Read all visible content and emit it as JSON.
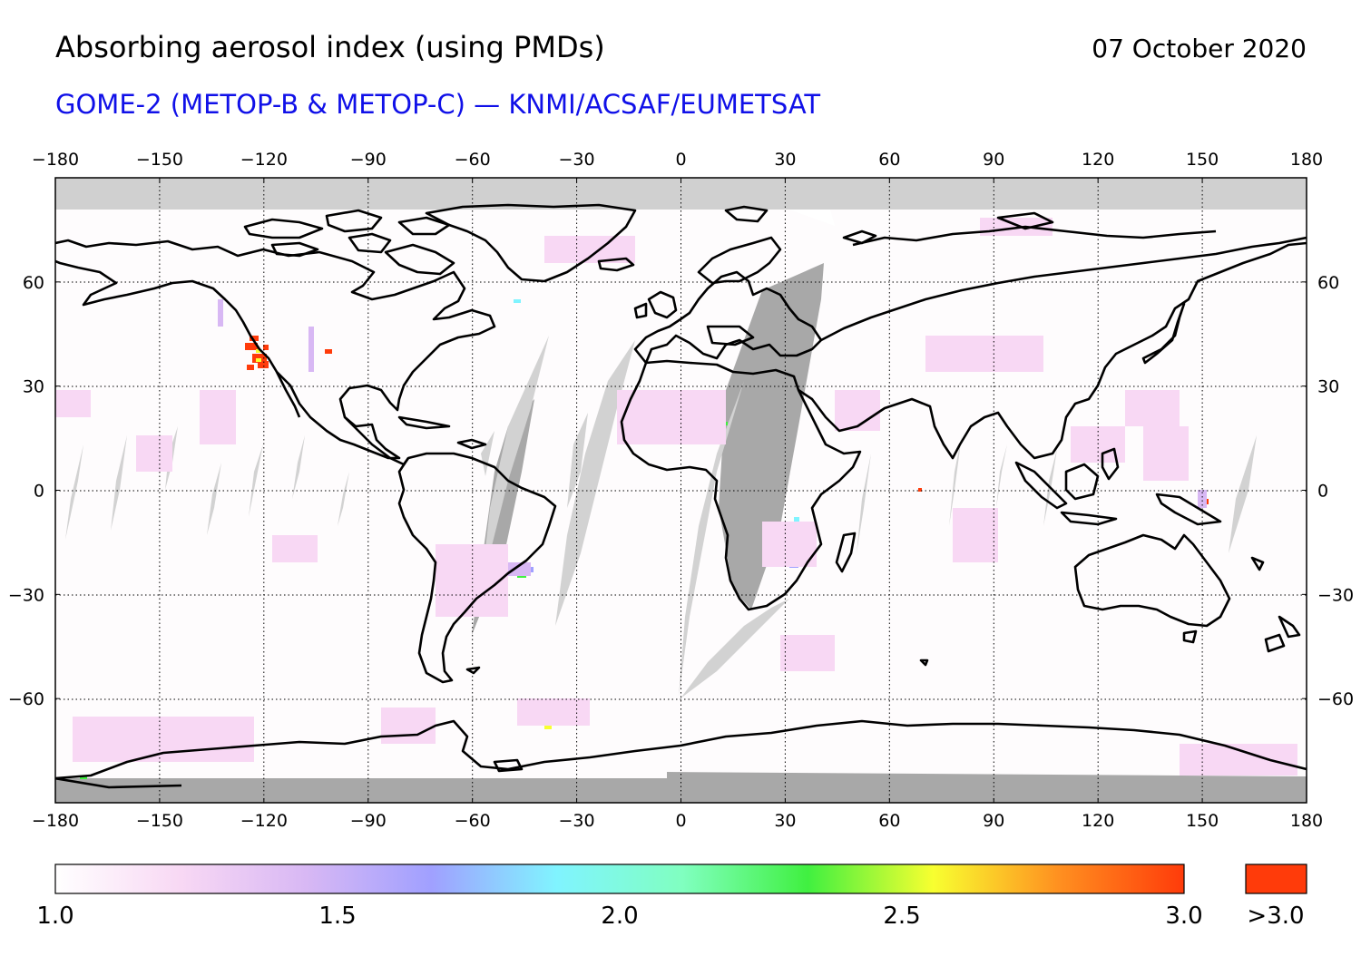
{
  "header": {
    "title": "Absorbing aerosol index (using PMDs)",
    "date": "07 October 2020",
    "subtitle": "GOME-2 (METOP-B & METOP-C) — KNMI/ACSAF/EUMETSAT",
    "subtitle_color": "#1010e8"
  },
  "map": {
    "projection": "equirectangular",
    "lon_range": [
      -180,
      180
    ],
    "lat_range": [
      -90,
      90
    ],
    "grid": true,
    "lon_ticks": [
      "−180",
      "−150",
      "−120",
      "−90",
      "−60",
      "−30",
      "0",
      "30",
      "60",
      "90",
      "120",
      "150",
      "180"
    ],
    "lat_ticks": [
      "60",
      "30",
      "0",
      "−30",
      "−60"
    ],
    "colors": {
      "no_data_polar": "#d0d0d0",
      "no_data_dark": "#a8a8a8",
      "orbit_gap": "#d2d2d2",
      "coastline": "#000000",
      "background": "#fefcfd"
    }
  },
  "colorbar": {
    "min": 1.0,
    "max": 3.0,
    "tick_labels": [
      "1.0",
      "1.5",
      "2.0",
      "2.5",
      "3.0"
    ],
    "overflow_label": ">3.0",
    "overflow_color": "#ff3b0a",
    "stops": [
      "#ffffff",
      "#f8d8f4",
      "#d8b8f4",
      "#a0a0ff",
      "#80f4ff",
      "#80ffc0",
      "#40f040",
      "#f8ff30",
      "#ff9020",
      "#ff3b0a"
    ]
  }
}
